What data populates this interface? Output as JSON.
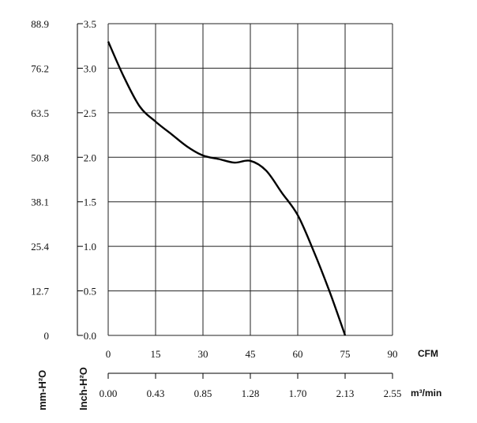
{
  "chart_data": {
    "type": "line",
    "series": [
      {
        "x": [
          0,
          5,
          10,
          15,
          20,
          25,
          30,
          35,
          40,
          45,
          50,
          55,
          60,
          65,
          70,
          75
        ],
        "y": [
          3.3,
          2.9,
          2.57,
          2.4,
          2.26,
          2.12,
          2.02,
          1.98,
          1.94,
          1.96,
          1.85,
          1.6,
          1.35,
          0.95,
          0.5,
          0.0
        ]
      }
    ],
    "xlim": [
      0,
      90
    ],
    "ylim": [
      0,
      3.5
    ],
    "grid": true,
    "x_ticks_cfm": [
      "0",
      "15",
      "30",
      "45",
      "60",
      "75",
      "90"
    ],
    "x_unit_cfm": "CFM",
    "x_ticks_m3min": [
      "0.00",
      "0.43",
      "0.85",
      "1.28",
      "1.70",
      "2.13",
      "2.55"
    ],
    "x_unit_m3min": "m³/min",
    "y_ticks_inch": [
      "0.0",
      "0.5",
      "1.0",
      "1.5",
      "2.0",
      "2.5",
      "3.0",
      "3.5"
    ],
    "y_ticks_mm": [
      "0",
      "12.7",
      "25.4",
      "38.1",
      "50.8",
      "63.5",
      "76.2",
      "88.9"
    ],
    "y_label_mm": "mm-H²O",
    "y_label_inch": "Inch-H²O"
  }
}
